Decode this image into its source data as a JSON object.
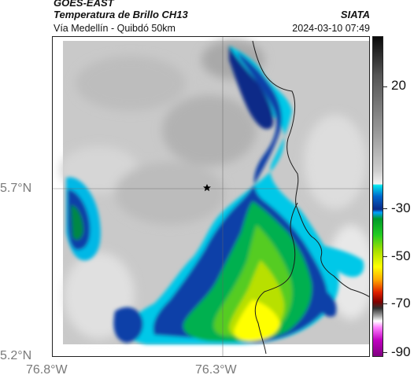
{
  "header": {
    "satellite": "GOES-EAST",
    "product": "Temperatura de Brillo CH13",
    "route": "Vía Medellín - Quibdó 50km",
    "org": "SIATA",
    "timestamp": "2024-03-10 07:49"
  },
  "map": {
    "lat_labels": [
      "5.7°N",
      "5.2°N"
    ],
    "lon_labels": [
      "76.8°W",
      "76.3°W"
    ],
    "marker_icon": "star-icon"
  },
  "colorbar": {
    "tick_labels": [
      "20",
      "-30",
      "-50",
      "-70",
      "-90"
    ],
    "colors": {
      "cold_top": "#0a0a0a",
      "warm_gray": "#d0d0d0",
      "cyan": "#00e5ee",
      "dark_blue": "#0a2a88",
      "green": "#22cc22",
      "yellow": "#ffff00",
      "red": "#e02000",
      "magenta": "#c000c0"
    }
  }
}
